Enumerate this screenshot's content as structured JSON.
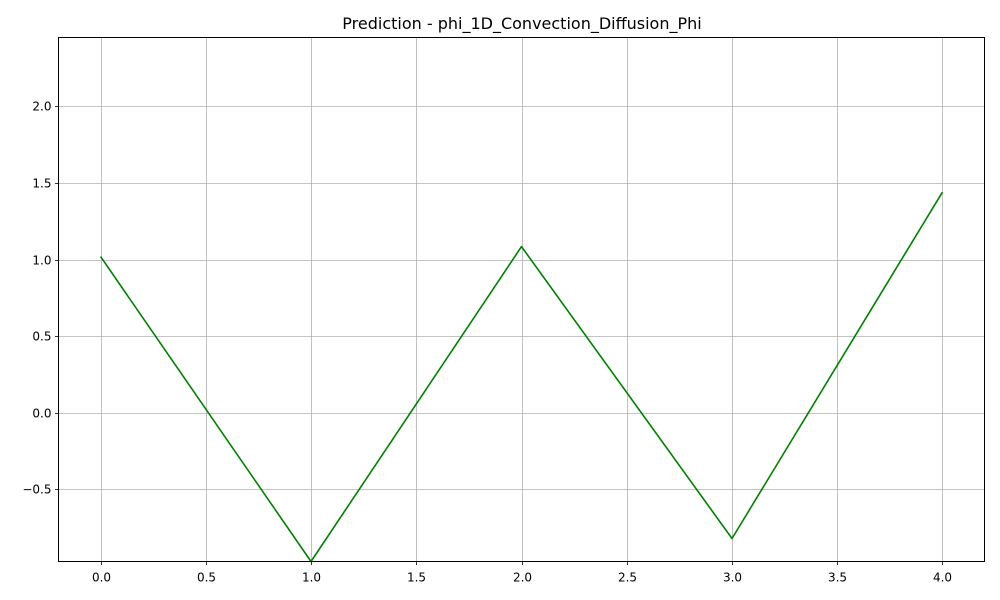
{
  "chart_data": {
    "type": "line",
    "title": "Prediction - phi_1D_Convection_Diffusion_Phi",
    "xlabel": "",
    "ylabel": "",
    "xlim": [
      -0.2,
      4.2
    ],
    "ylim": [
      -0.97,
      2.45
    ],
    "x_ticks": [
      0.0,
      0.5,
      1.0,
      1.5,
      2.0,
      2.5,
      3.0,
      3.5,
      4.0
    ],
    "x_tick_labels": [
      "0.0",
      "0.5",
      "1.0",
      "1.5",
      "2.0",
      "2.5",
      "3.0",
      "3.5",
      "4.0"
    ],
    "y_ticks": [
      -0.5,
      0.0,
      0.5,
      1.0,
      1.5,
      2.0
    ],
    "y_tick_labels": [
      "−0.5",
      "0.0",
      "0.5",
      "1.0",
      "1.5",
      "2.0"
    ],
    "grid": true,
    "series": [
      {
        "x": [
          0,
          1,
          2,
          3,
          4
        ],
        "values": [
          1.02,
          -0.97,
          1.085,
          -0.82,
          1.44
        ],
        "color": "#008000"
      }
    ]
  }
}
